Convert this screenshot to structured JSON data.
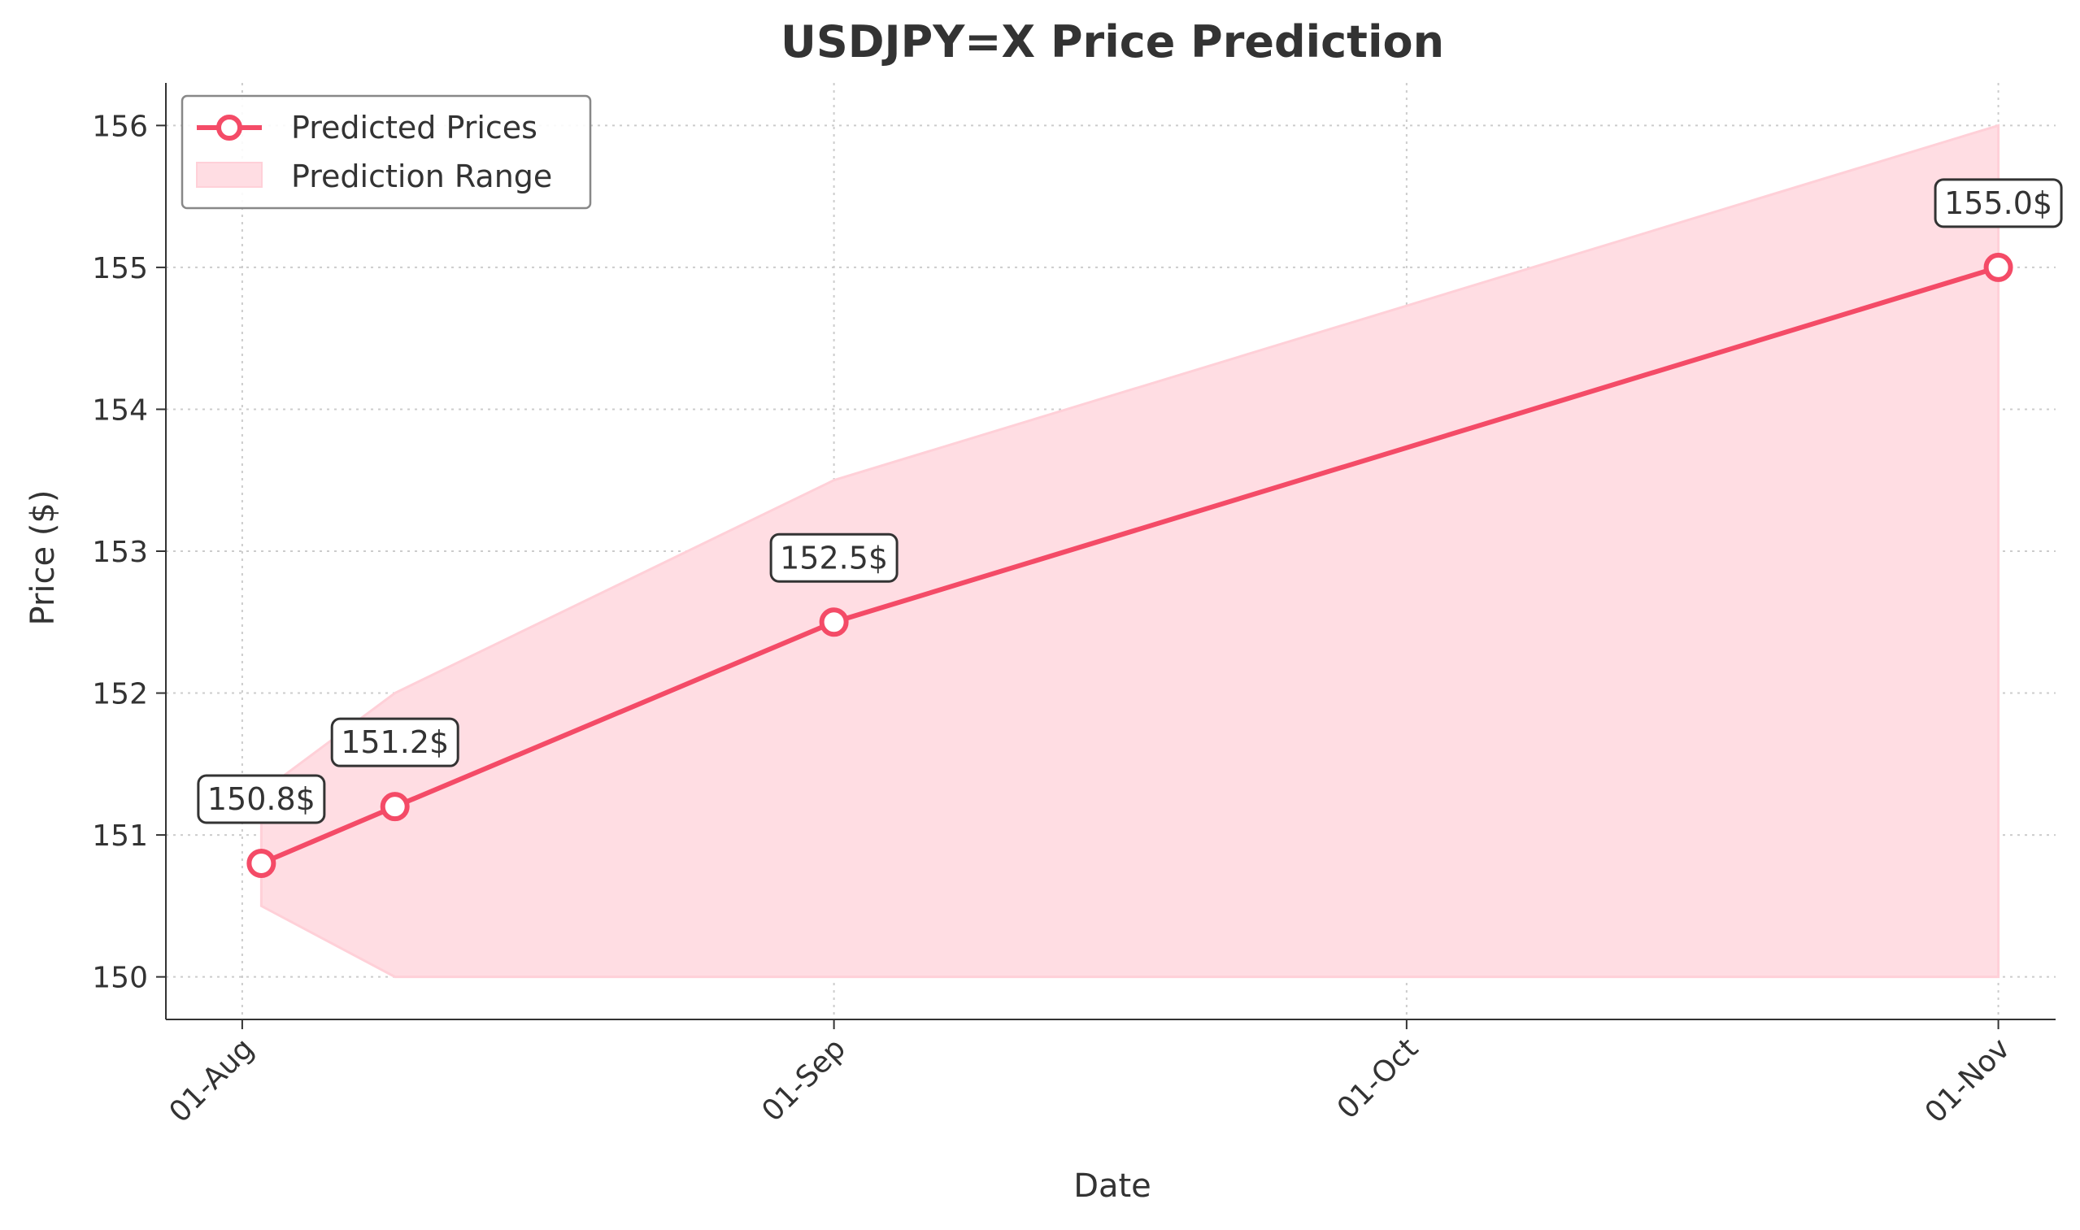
{
  "chart_data": {
    "type": "line",
    "title": "USDJPY=X Price Prediction",
    "xlabel": "Date",
    "ylabel": "Price ($)",
    "x_ticks": [
      "01-Aug",
      "01-Sep",
      "01-Oct",
      "01-Nov"
    ],
    "y_ticks": [
      150,
      151,
      152,
      153,
      154,
      155,
      156
    ],
    "xlim": [
      "2024-07-28",
      "2024-11-04"
    ],
    "ylim": [
      149.7,
      156.3
    ],
    "grid": true,
    "legend_position": "top-left",
    "series": [
      {
        "name": "Predicted Prices",
        "color": "#f44b67",
        "x": [
          "2024-08-02",
          "2024-08-09",
          "2024-09-01",
          "2024-11-01"
        ],
        "values": [
          150.8,
          151.2,
          152.5,
          155.0
        ],
        "labels": [
          "150.8$",
          "151.2$",
          "152.5$",
          "155.0$"
        ]
      }
    ],
    "range": {
      "name": "Prediction Range",
      "color": "#ffdde3",
      "x": [
        "2024-08-02",
        "2024-08-09",
        "2024-09-01",
        "2024-11-01"
      ],
      "low": [
        150.5,
        150.0,
        150.0,
        150.0
      ],
      "high": [
        151.3,
        152.0,
        153.5,
        156.0
      ]
    }
  }
}
